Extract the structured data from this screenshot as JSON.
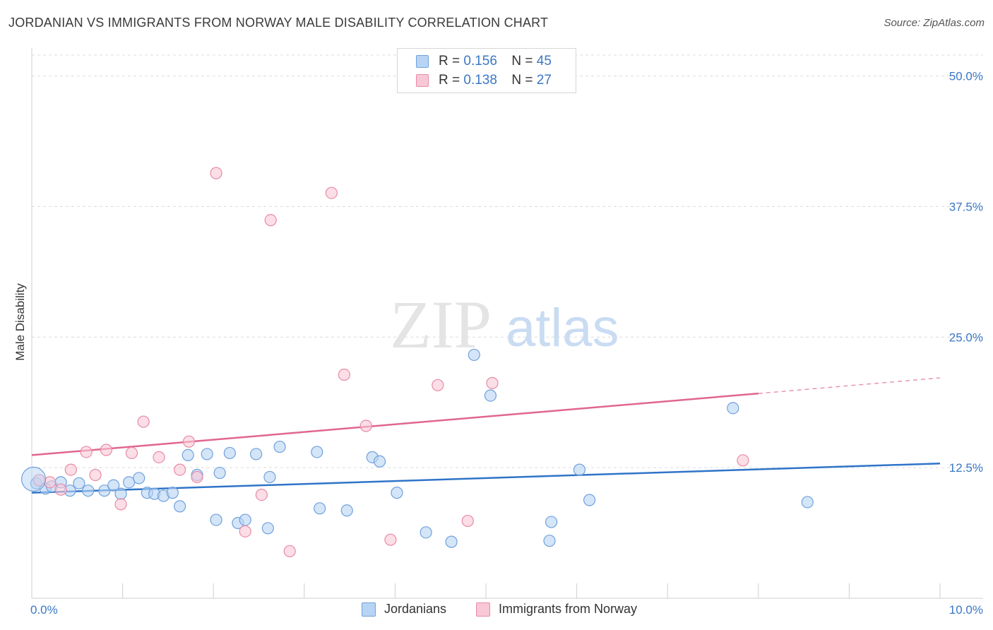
{
  "header": {
    "title": "JORDANIAN VS IMMIGRANTS FROM NORWAY MALE DISABILITY CORRELATION CHART",
    "source": "Source: ZipAtlas.com"
  },
  "legend_stats": {
    "r_label": "R =",
    "n_label": "N =",
    "jordanians": {
      "r": "0.156",
      "n": "45"
    },
    "norway": {
      "r": "0.138",
      "n": "27"
    }
  },
  "bottom_legend": {
    "jordanians": "Jordanians",
    "norway": "Immigrants from Norway"
  },
  "colors": {
    "blue_fill": "#b8d4f4",
    "blue_stroke": "#6fa1dc",
    "blue_line": "#2f74c8",
    "pink_fill": "#f8c8d6",
    "pink_stroke": "#e98aa7",
    "pink_line": "#e06690",
    "tick_text": "#3b78c4"
  },
  "watermark": {
    "zip": "ZIP",
    "atlas": "atlas"
  },
  "chart_data": {
    "type": "scatter",
    "title": "JORDANIAN VS IMMIGRANTS FROM NORWAY MALE DISABILITY CORRELATION CHART",
    "xlabel": "",
    "ylabel": "Male Disability",
    "xlim": [
      0,
      10
    ],
    "ylim": [
      0,
      52
    ],
    "x_tick_labels": [
      "0.0%",
      "10.0%"
    ],
    "y_ticks": [
      12.5,
      25.0,
      37.5,
      50.0
    ],
    "y_tick_labels": [
      "12.5%",
      "25.0%",
      "37.5%",
      "50.0%"
    ],
    "grid": true,
    "series": [
      {
        "name": "Jordanians",
        "r": 0.156,
        "n": 45,
        "trend": {
          "x": [
            0,
            10
          ],
          "y": [
            10.1,
            12.9
          ]
        },
        "points": [
          [
            0.05,
            11.0
          ],
          [
            0.15,
            10.5
          ],
          [
            0.22,
            10.7
          ],
          [
            0.32,
            11.1
          ],
          [
            0.42,
            10.3
          ],
          [
            0.52,
            11.0
          ],
          [
            0.62,
            10.3
          ],
          [
            0.8,
            10.3
          ],
          [
            0.9,
            10.8
          ],
          [
            0.98,
            10.0
          ],
          [
            1.07,
            11.1
          ],
          [
            1.18,
            11.5
          ],
          [
            1.27,
            10.1
          ],
          [
            1.35,
            10.0
          ],
          [
            1.45,
            9.8
          ],
          [
            1.55,
            10.1
          ],
          [
            1.63,
            8.8
          ],
          [
            1.72,
            13.7
          ],
          [
            1.82,
            11.8
          ],
          [
            1.93,
            13.8
          ],
          [
            2.03,
            7.5
          ],
          [
            2.07,
            12.0
          ],
          [
            2.18,
            13.9
          ],
          [
            2.27,
            7.2
          ],
          [
            2.35,
            7.5
          ],
          [
            2.47,
            13.8
          ],
          [
            2.6,
            6.7
          ],
          [
            2.62,
            11.6
          ],
          [
            2.73,
            14.5
          ],
          [
            3.14,
            14.0
          ],
          [
            3.17,
            8.6
          ],
          [
            3.47,
            8.4
          ],
          [
            3.75,
            13.5
          ],
          [
            3.83,
            13.1
          ],
          [
            4.02,
            10.1
          ],
          [
            4.34,
            6.3
          ],
          [
            4.62,
            5.4
          ],
          [
            4.87,
            23.3
          ],
          [
            5.05,
            19.4
          ],
          [
            5.7,
            5.5
          ],
          [
            5.72,
            7.3
          ],
          [
            6.03,
            12.3
          ],
          [
            6.14,
            9.4
          ],
          [
            7.72,
            18.2
          ],
          [
            8.54,
            9.2
          ]
        ]
      },
      {
        "name": "Immigrants from Norway",
        "r": 0.138,
        "n": 27,
        "trend": {
          "x": [
            0,
            8.0
          ],
          "y": [
            13.7,
            19.6
          ]
        },
        "trend_dashed_extension": {
          "x": [
            8.0,
            10
          ],
          "y": [
            19.6,
            21.1
          ]
        },
        "points": [
          [
            0.08,
            11.3
          ],
          [
            0.2,
            11.1
          ],
          [
            0.32,
            10.4
          ],
          [
            0.43,
            12.3
          ],
          [
            0.6,
            14.0
          ],
          [
            0.7,
            11.8
          ],
          [
            0.82,
            14.2
          ],
          [
            0.98,
            9.0
          ],
          [
            1.1,
            13.9
          ],
          [
            1.23,
            16.9
          ],
          [
            1.4,
            13.5
          ],
          [
            1.63,
            12.3
          ],
          [
            1.73,
            15.0
          ],
          [
            1.82,
            11.6
          ],
          [
            2.03,
            40.7
          ],
          [
            2.35,
            6.4
          ],
          [
            2.53,
            9.9
          ],
          [
            2.63,
            36.2
          ],
          [
            2.84,
            4.5
          ],
          [
            3.3,
            38.8
          ],
          [
            3.44,
            21.4
          ],
          [
            3.68,
            16.5
          ],
          [
            3.95,
            5.6
          ],
          [
            4.47,
            20.4
          ],
          [
            4.8,
            7.4
          ],
          [
            5.07,
            20.6
          ],
          [
            7.83,
            13.2
          ]
        ]
      }
    ]
  }
}
